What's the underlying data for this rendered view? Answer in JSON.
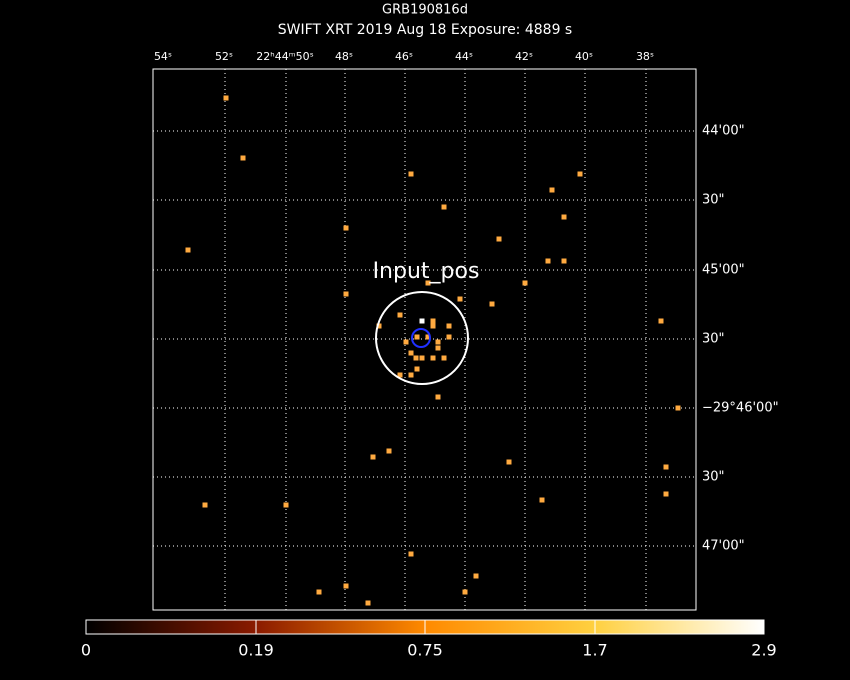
{
  "header": {
    "title": "GRB190816d",
    "subtitle": "SWIFT XRT   2019 Aug 18    Exposure: 4889 s"
  },
  "ra_ticks": [
    "54ˢ",
    "52ˢ",
    "22ʰ44ᵐ50ˢ",
    "48ˢ",
    "46ˢ",
    "44ˢ",
    "42ˢ",
    "40ˢ",
    "38ˢ"
  ],
  "dec_ticks": [
    "44'00\"",
    "30\"",
    "45'00\"",
    "30\"",
    "−29°46'00\"",
    "30\"",
    "47'00\""
  ],
  "annotation": "Input_pos",
  "colorbar": {
    "labels": [
      "0",
      "0.19",
      "0.75",
      "1.7",
      "2.9"
    ]
  }
}
